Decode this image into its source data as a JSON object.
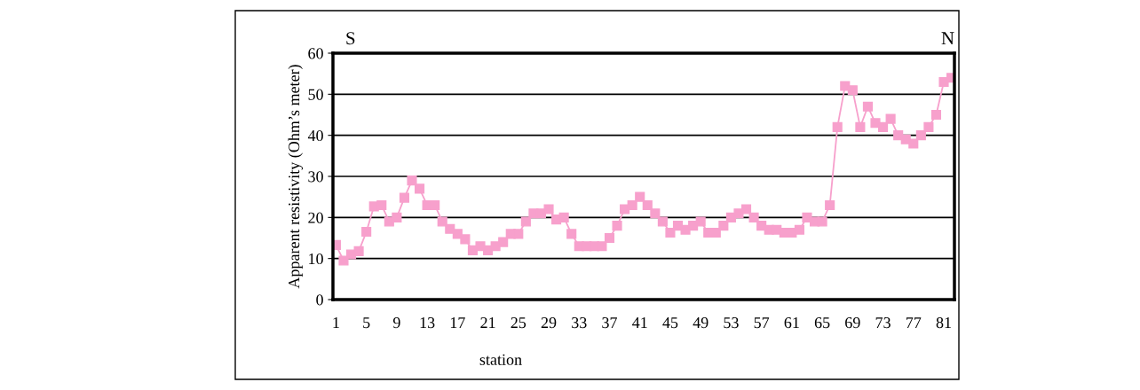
{
  "chart_data": {
    "type": "line",
    "xlabel": "station",
    "ylabel": "Apparent resistivity (Ohm’s meter)",
    "categories": [
      "1",
      null,
      null,
      null,
      "5",
      null,
      null,
      null,
      "9",
      null,
      null,
      null,
      "13",
      null,
      null,
      null,
      "17",
      null,
      null,
      null,
      "21",
      null,
      null,
      null,
      "25",
      null,
      null,
      null,
      "29",
      null,
      null,
      null,
      "33",
      null,
      null,
      null,
      "37",
      null,
      null,
      null,
      "41",
      null,
      null,
      null,
      "45",
      null,
      null,
      null,
      "49",
      null,
      null,
      null,
      "53",
      null,
      null,
      null,
      "57",
      null,
      null,
      null,
      "61",
      null,
      null,
      null,
      "65",
      null,
      null,
      null,
      "69",
      null,
      null,
      null,
      "73",
      null,
      null,
      null,
      "77",
      null,
      null,
      null,
      "81",
      null
    ],
    "series": [
      {
        "color": "#f7a0cc",
        "values": [
          13.3,
          9.5,
          11,
          11.8,
          16.5,
          22.7,
          23,
          19,
          20,
          24.8,
          29,
          27,
          23,
          23,
          19,
          17.2,
          16,
          14.7,
          12,
          13,
          12,
          13,
          14,
          16,
          16,
          19,
          21,
          21,
          22,
          19.5,
          20,
          16,
          13,
          13,
          13,
          13,
          15,
          18,
          22,
          23,
          25,
          23,
          21,
          19,
          16.3,
          18,
          17,
          18,
          19,
          16.3,
          16.3,
          18,
          20,
          21,
          22,
          20,
          18,
          17,
          17,
          16.3,
          16.3,
          17,
          20,
          19,
          19,
          23,
          42,
          52,
          51,
          42,
          47,
          43,
          42,
          44,
          40,
          39,
          38,
          40,
          42,
          45,
          53,
          54
        ]
      }
    ],
    "ylim": [
      0,
      60
    ],
    "yticks": [
      0,
      10,
      20,
      30,
      40,
      50,
      60
    ],
    "grid": "y",
    "marker": "square",
    "line_style": "solid",
    "annotations": [
      "S",
      "N"
    ]
  }
}
